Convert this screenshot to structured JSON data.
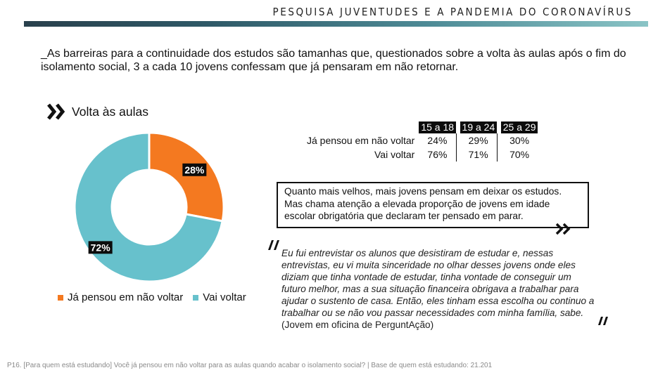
{
  "header": {
    "title": "PESQUISA JUVENTUDES E A PANDEMIA DO CORONAVÍRUS"
  },
  "intro": "_As barreiras para a continuidade dos estudos são tamanhas que, questionados sobre a volta às aulas após o fim do isolamento social, 3 a cada 10 jovens confessam que já pensaram em não retornar.",
  "section": {
    "title": "Volta às aulas"
  },
  "chart_data": {
    "type": "pie",
    "donut": true,
    "categories": [
      "Já pensou em não voltar",
      "Vai voltar"
    ],
    "values": [
      28,
      72
    ],
    "labels": [
      "28%",
      "72%"
    ],
    "colors": [
      "#f47920",
      "#67c1cc"
    ],
    "legend_position": "bottom"
  },
  "age_table": {
    "columns": [
      "15 a 18",
      "19 a 24",
      "25 a 29"
    ],
    "rows": [
      {
        "label": "Já pensou em não voltar",
        "values": [
          "24%",
          "29%",
          "30%"
        ]
      },
      {
        "label": "Vai voltar",
        "values": [
          "76%",
          "71%",
          "70%"
        ]
      }
    ]
  },
  "callout": {
    "text": "Quanto mais velhos, mais jovens pensam em deixar os estudos. Mas chama atenção a elevada proporção de jovens em idade escolar obrigatória que declaram ter pensado em parar."
  },
  "quote": {
    "text": "Eu fui entrevistar os alunos que desistiram de estudar e, nessas entrevistas, eu vi muita sinceridade no olhar desses jovens onde eles diziam que tinha vontade de estudar, tinha vontade de conseguir um futuro melhor, mas a sua situação financeira obrigava a trabalhar para ajudar o sustento de casa. Então, eles tinham essa escolha ou continuo a trabalhar ou se não vou passar necessidades com minha família, sabe.",
    "attribution": "(Jovem em oficina de PerguntAção)"
  },
  "footnote": "P16. [Para quem está estudando] Você já pensou em não voltar para as aulas quando acabar o isolamento social? | Base de quem está estudando: 21.201"
}
